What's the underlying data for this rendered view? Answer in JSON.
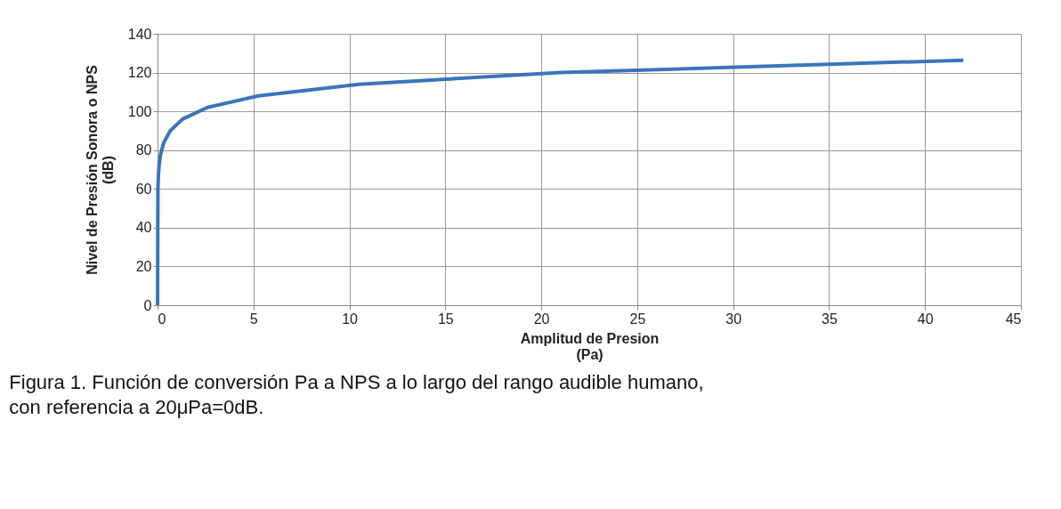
{
  "chart_data": {
    "type": "line",
    "xlabel": "Amplitud de Presion\n(Pa)",
    "ylabel": "Nivel  de Presión Sonora  o NPS\n(dB)",
    "annotations": [
      "Figura 1. Función de conversión Pa a NPS a lo largo del rango audible humano,\ncon referencia a 20μPa=0dB."
    ],
    "series": [
      {
        "color": "#3b75bb",
        "x": [
          0,
          0.02,
          0.04,
          0.08,
          0.16,
          0.33,
          0.66,
          1.3,
          2.6,
          5.25,
          10.5,
          21,
          42
        ],
        "values": [
          0,
          60,
          66,
          72,
          78,
          84,
          90,
          96,
          102,
          108,
          114,
          120,
          126.4
        ]
      }
    ],
    "xlim": [
      0,
      45
    ],
    "xticks": [
      0,
      5,
      10,
      15,
      20,
      25,
      30,
      35,
      40,
      45
    ],
    "ylim": [
      0,
      140
    ],
    "yticks": [
      0,
      20,
      40,
      60,
      80,
      100,
      120,
      140
    ],
    "grid": true,
    "marker": "none",
    "line_style": "solid"
  }
}
